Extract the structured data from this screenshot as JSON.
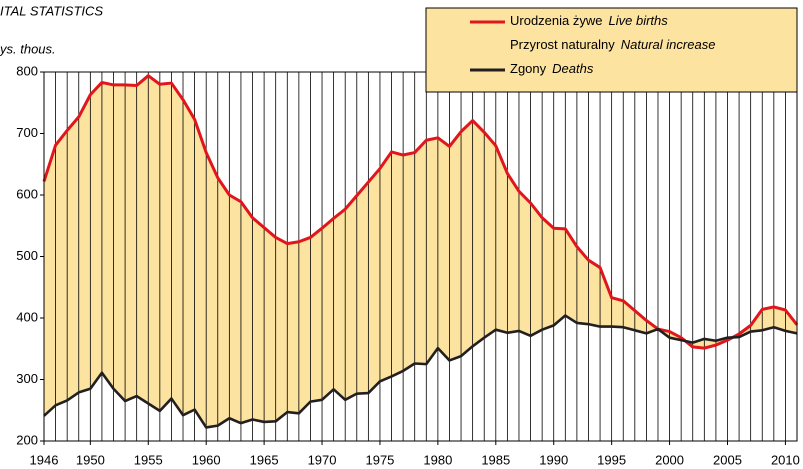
{
  "chart_data": {
    "type": "line",
    "title": "ITAL STATISTICS",
    "y_label": "ys. thous.",
    "x": [
      1946,
      1947,
      1948,
      1949,
      1950,
      1951,
      1952,
      1953,
      1954,
      1955,
      1956,
      1957,
      1958,
      1959,
      1960,
      1961,
      1962,
      1963,
      1964,
      1965,
      1966,
      1967,
      1968,
      1969,
      1970,
      1971,
      1972,
      1973,
      1974,
      1975,
      1976,
      1977,
      1978,
      1979,
      1980,
      1981,
      1982,
      1983,
      1984,
      1985,
      1986,
      1987,
      1988,
      1989,
      1990,
      1991,
      1992,
      1993,
      1994,
      1995,
      1996,
      1997,
      1998,
      1999,
      2000,
      2001,
      2002,
      2003,
      2004,
      2005,
      2006,
      2007,
      2008,
      2009,
      2010,
      2011
    ],
    "series": [
      {
        "name": "Urodzenia żywe",
        "name_en": "Live births",
        "color": "#e0161c",
        "values": [
          622,
          681,
          705,
          727,
          763,
          783,
          779,
          779,
          778,
          794,
          780,
          782,
          755,
          723,
          669,
          628,
          600,
          589,
          563,
          547,
          531,
          521,
          524,
          531,
          546,
          562,
          577,
          599,
          621,
          643,
          670,
          665,
          669,
          689,
          693,
          679,
          703,
          721,
          702,
          680,
          635,
          606,
          587,
          563,
          546,
          545,
          516,
          494,
          482,
          433,
          428,
          412,
          396,
          382,
          378,
          368,
          353,
          351,
          356,
          364,
          374,
          388,
          414,
          418,
          413,
          389
        ]
      },
      {
        "name": "Zgony",
        "name_en": "Deaths",
        "color": "#231f20",
        "values": [
          241,
          258,
          266,
          279,
          285,
          311,
          285,
          265,
          273,
          261,
          249,
          269,
          242,
          251,
          222,
          225,
          237,
          229,
          235,
          231,
          232,
          247,
          245,
          264,
          267,
          284,
          267,
          277,
          278,
          297,
          305,
          314,
          326,
          325,
          351,
          331,
          338,
          354,
          368,
          381,
          376,
          379,
          371,
          381,
          388,
          404,
          392,
          390,
          386,
          386,
          385,
          380,
          375,
          382,
          368,
          364,
          360,
          366,
          363,
          368,
          369,
          378,
          380,
          385,
          379,
          375
        ]
      }
    ],
    "area": {
      "name": "Przyrost naturalny",
      "name_en": "Natural increase",
      "color": "#fde3a0"
    },
    "xlim": [
      1946,
      2011
    ],
    "xticks": [
      1946,
      1950,
      1955,
      1960,
      1965,
      1970,
      1975,
      1980,
      1985,
      1990,
      1995,
      2000,
      2005,
      2010
    ],
    "ylim": [
      200,
      800
    ],
    "yticks": [
      200,
      300,
      400,
      500,
      600,
      700,
      800
    ],
    "grid": true
  }
}
